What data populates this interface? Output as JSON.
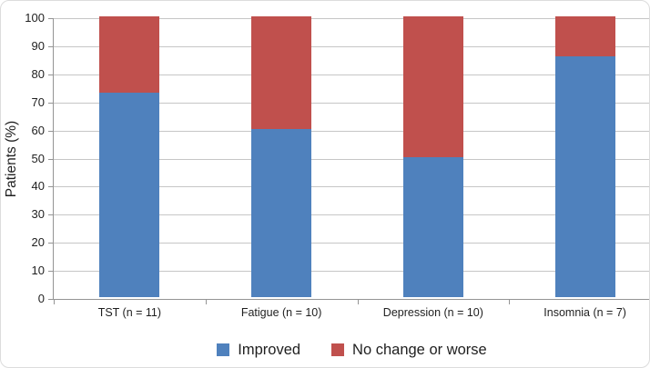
{
  "chart_data": {
    "type": "bar",
    "stacked": true,
    "orientation": "vertical",
    "title": "",
    "xlabel": "",
    "ylabel": "Patients (%)",
    "categories": [
      "TST (n = 11)",
      "Fatigue (n = 10)",
      "Depression (n = 10)",
      "Insomnia (n = 7)"
    ],
    "series": [
      {
        "name": "Improved",
        "color": "#4F81BD",
        "values": [
          72.7,
          60,
          50,
          85.7
        ]
      },
      {
        "name": "No change or worse",
        "color": "#C0504D",
        "values": [
          27.3,
          40,
          50,
          14.3
        ]
      }
    ],
    "ylim": [
      0,
      100
    ],
    "ytick_step": 10,
    "grid": true,
    "gridline_color": "#c6c6c6",
    "axis_color": "#949494",
    "legend_position": "bottom"
  }
}
